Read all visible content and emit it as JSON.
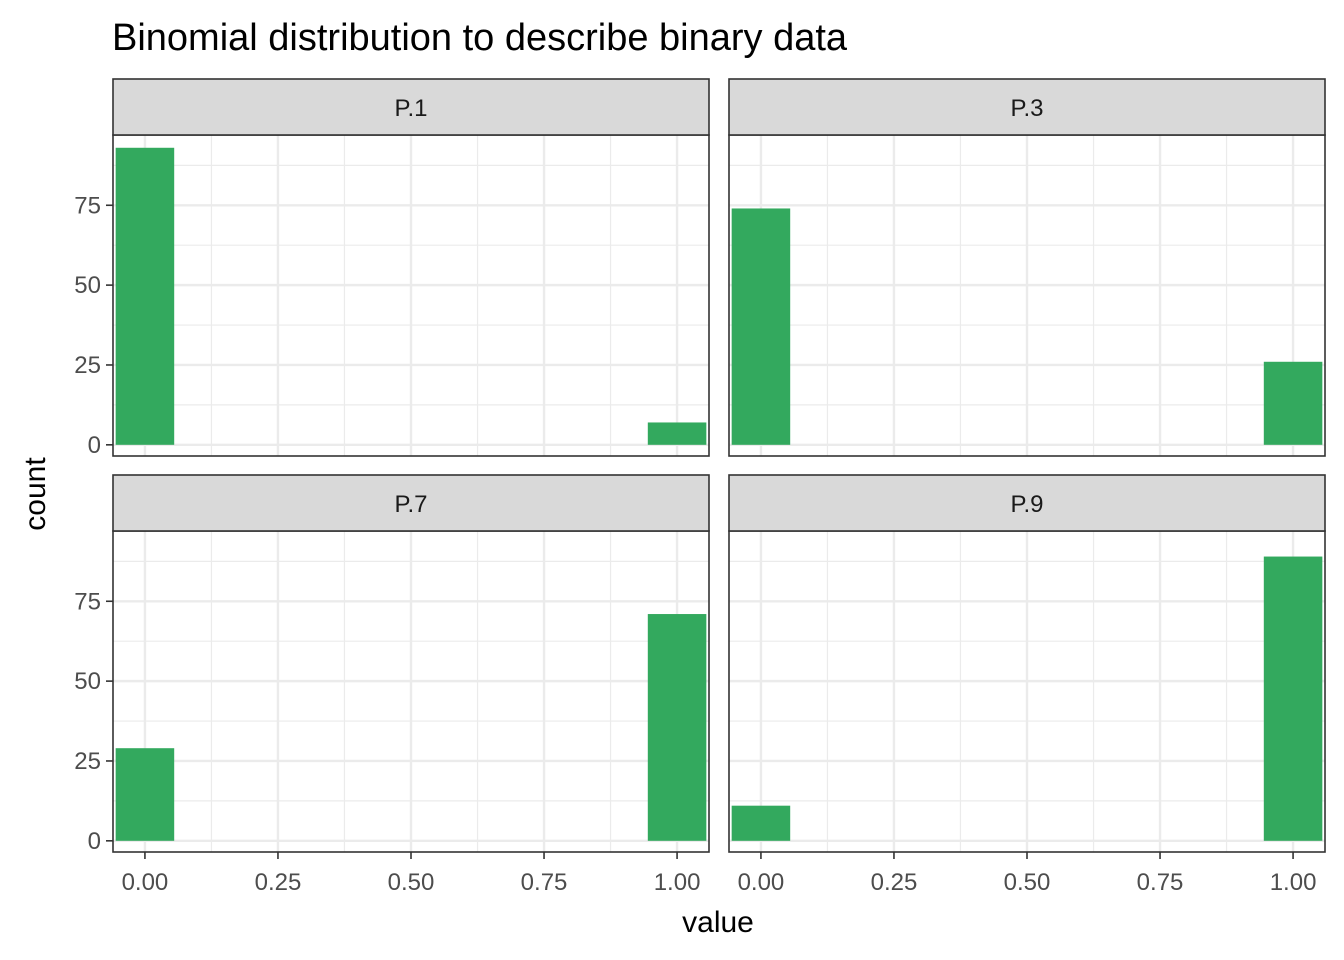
{
  "chart_data": {
    "type": "bar",
    "title": "Binomial distribution to describe binary data",
    "xlabel": "value",
    "ylabel": "count",
    "xlim": [
      -0.06,
      1.06
    ],
    "ylim": [
      -3.5,
      97
    ],
    "x_ticks": [
      0.0,
      0.25,
      0.5,
      0.75,
      1.0
    ],
    "x_tick_labels": [
      "0.00",
      "0.25",
      "0.50",
      "0.75",
      "1.00"
    ],
    "y_ticks": [
      0,
      25,
      50,
      75
    ],
    "y_tick_labels": [
      "0",
      "25",
      "50",
      "75"
    ],
    "bar_color": "#33a95e",
    "strip_color": "#d9d9d9",
    "grid": true,
    "facets": [
      {
        "label": "P.1",
        "bars": [
          {
            "x": 0,
            "count": 93
          },
          {
            "x": 1,
            "count": 7
          }
        ]
      },
      {
        "label": "P.3",
        "bars": [
          {
            "x": 0,
            "count": 74
          },
          {
            "x": 1,
            "count": 26
          }
        ]
      },
      {
        "label": "P.7",
        "bars": [
          {
            "x": 0,
            "count": 29
          },
          {
            "x": 1,
            "count": 71
          }
        ]
      },
      {
        "label": "P.9",
        "bars": [
          {
            "x": 0,
            "count": 11
          },
          {
            "x": 1,
            "count": 89
          }
        ]
      }
    ]
  }
}
